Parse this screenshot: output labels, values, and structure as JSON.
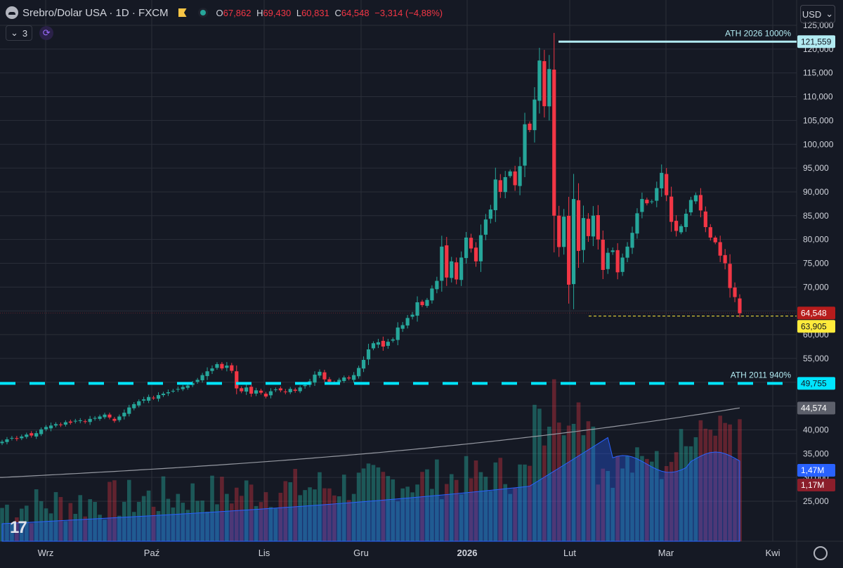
{
  "header": {
    "symbol": "Srebro/Dolar USA · 1D · FXCM",
    "ohlc": [
      {
        "k": "O",
        "v": "67,862"
      },
      {
        "k": "H",
        "v": "69,430"
      },
      {
        "k": "L",
        "v": "60,831"
      },
      {
        "k": "C",
        "v": "64,548"
      }
    ],
    "change": "−3,314 (−4,88%)",
    "indicator_count": "3"
  },
  "currency": "USD",
  "colors": {
    "up": "#26a69a",
    "down": "#f23645",
    "background": "#151924",
    "grid": "#2a2e39",
    "volume_ma": "#2962ff"
  },
  "chart_data": {
    "type": "candlestick",
    "price_axis": {
      "min": 22000,
      "max": 127000,
      "ticks": [
        "125,000",
        "120,000",
        "115,000",
        "110,000",
        "105,000",
        "100,000",
        "95,000",
        "90,000",
        "85,000",
        "80,000",
        "75,000",
        "70,000",
        "65,000",
        "60,000",
        "55,000",
        "50,000",
        "45,000",
        "40,000",
        "35,000",
        "30,000",
        "25,000"
      ]
    },
    "x_axis": {
      "labels": [
        "Wrz",
        "Paź",
        "Lis",
        "Gru",
        "2026",
        "Lut",
        "Mar",
        "Kwi"
      ]
    },
    "closes": [
      37.5,
      38.0,
      38.3,
      38.1,
      38.6,
      39.0,
      38.8,
      39.3,
      40.1,
      40.6,
      40.9,
      41.2,
      41.0,
      41.6,
      41.5,
      41.9,
      42.0,
      41.7,
      42.3,
      42.5,
      42.8,
      43.2,
      42.6,
      41.9,
      42.8,
      43.6,
      44.7,
      45.4,
      46.0,
      46.4,
      46.9,
      46.7,
      47.3,
      47.6,
      47.9,
      48.2,
      48.6,
      49.0,
      49.3,
      49.8,
      50.5,
      51.5,
      52.3,
      52.9,
      53.8,
      52.9,
      53.5,
      52.4,
      48.7,
      48.1,
      48.9,
      47.6,
      48.3,
      47.8,
      47.0,
      48.1,
      48.5,
      48.3,
      48.0,
      48.6,
      48.2,
      48.9,
      49.4,
      50.2,
      51.6,
      52.2,
      50.6,
      50.1,
      49.9,
      50.5,
      51.0,
      50.8,
      51.5,
      53.0,
      54.7,
      56.9,
      58.2,
      58.4,
      57.5,
      58.5,
      59.0,
      61.5,
      62.0,
      63.5,
      64.2,
      66.8,
      66.2,
      67.3,
      69.7,
      71.3,
      78.5,
      72.0,
      75.4,
      71.6,
      76.2,
      80.4,
      78.1,
      75.4,
      80.9,
      84.2,
      86.3,
      92.6,
      90.0,
      93.1,
      94.3,
      91.4,
      95.4,
      104.2,
      103.0,
      109.4,
      117.6,
      108.0,
      115.8,
      85.0,
      78.4,
      84.8,
      70.5,
      88.5,
      77.6,
      84.5,
      80.7,
      85.0,
      80.0,
      73.6,
      77.2,
      77.7,
      73.1,
      76.2,
      78.5,
      81.4,
      85.5,
      88.5,
      87.6,
      88.0,
      90.8,
      94.0,
      89.3,
      83.7,
      81.8,
      82.8,
      85.4,
      88.3,
      89.3,
      86.1,
      82.6,
      80.4,
      79.4,
      76.6,
      75.0,
      69.8,
      67.9,
      64.5
    ],
    "volume_ma_label": "1,47M",
    "volume_label": "1,17M",
    "series": [
      {
        "name": "ATH 2026 1000%",
        "value": 121559,
        "value_label": "121,559",
        "color": "#b2ebf2"
      },
      {
        "name": "ATH 2011 940%",
        "value": 49755,
        "value_label": "49,755",
        "color": "#00e5ff"
      },
      {
        "name": "",
        "value": 44574,
        "value_label": "44,574",
        "color": "#b2b5be"
      },
      {
        "name": "",
        "value": 64548,
        "value_label": "64,548",
        "color": "#f23645"
      },
      {
        "name": "",
        "value": 63905,
        "value_label": "63,905",
        "color": "#ffeb3b"
      }
    ]
  }
}
